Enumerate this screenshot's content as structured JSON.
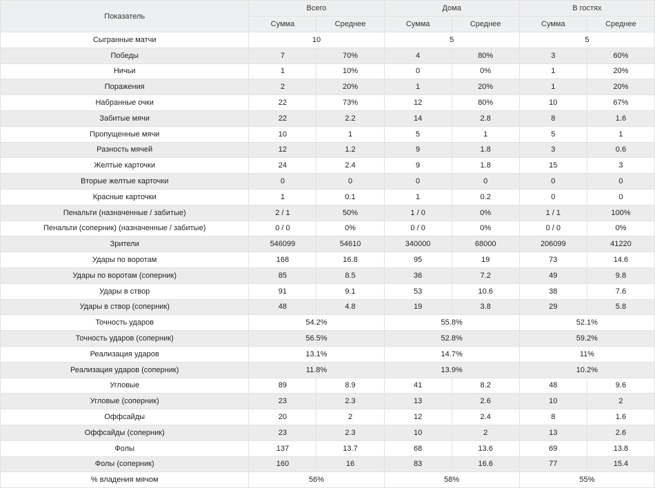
{
  "header": {
    "metric": "Показатель",
    "groups": [
      "Всего",
      "Дома",
      "В гостях"
    ],
    "sub": [
      "Сумма",
      "Среднее"
    ]
  },
  "rows": [
    {
      "label": "Сыгранные матчи",
      "merged": true,
      "values": [
        "10",
        "5",
        "5"
      ]
    },
    {
      "label": "Победы",
      "values": [
        "7",
        "70%",
        "4",
        "80%",
        "3",
        "60%"
      ]
    },
    {
      "label": "Ничьи",
      "values": [
        "1",
        "10%",
        "0",
        "0%",
        "1",
        "20%"
      ]
    },
    {
      "label": "Поражения",
      "values": [
        "2",
        "20%",
        "1",
        "20%",
        "1",
        "20%"
      ]
    },
    {
      "label": "Набранные очки",
      "values": [
        "22",
        "73%",
        "12",
        "80%",
        "10",
        "67%"
      ]
    },
    {
      "label": "Забитые мячи",
      "values": [
        "22",
        "2.2",
        "14",
        "2.8",
        "8",
        "1.6"
      ]
    },
    {
      "label": "Пропущенные мячи",
      "values": [
        "10",
        "1",
        "5",
        "1",
        "5",
        "1"
      ]
    },
    {
      "label": "Разность мячей",
      "values": [
        "12",
        "1.2",
        "9",
        "1.8",
        "3",
        "0.6"
      ]
    },
    {
      "label": "Желтые карточки",
      "values": [
        "24",
        "2.4",
        "9",
        "1.8",
        "15",
        "3"
      ]
    },
    {
      "label": "Вторые желтые карточки",
      "values": [
        "0",
        "0",
        "0",
        "0",
        "0",
        "0"
      ]
    },
    {
      "label": "Красные карточки",
      "values": [
        "1",
        "0.1",
        "1",
        "0.2",
        "0",
        "0"
      ]
    },
    {
      "label": "Пенальти (назначенные / забитые)",
      "values": [
        "2 / 1",
        "50%",
        "1 / 0",
        "0%",
        "1 / 1",
        "100%"
      ]
    },
    {
      "label": "Пенальти (соперник) (назначенные / забитые)",
      "values": [
        "0 / 0",
        "0%",
        "0 / 0",
        "0%",
        "0 / 0",
        "0%"
      ]
    },
    {
      "label": "Зрители",
      "values": [
        "546099",
        "54610",
        "340000",
        "68000",
        "206099",
        "41220"
      ]
    },
    {
      "label": "Удары по воротам",
      "values": [
        "168",
        "16.8",
        "95",
        "19",
        "73",
        "14.6"
      ]
    },
    {
      "label": "Удары по воротам (соперник)",
      "values": [
        "85",
        "8.5",
        "36",
        "7.2",
        "49",
        "9.8"
      ]
    },
    {
      "label": "Удары в створ",
      "values": [
        "91",
        "9.1",
        "53",
        "10.6",
        "38",
        "7.6"
      ]
    },
    {
      "label": "Удары в створ (соперник)",
      "values": [
        "48",
        "4.8",
        "19",
        "3.8",
        "29",
        "5.8"
      ]
    },
    {
      "label": "Точность ударов",
      "merged": true,
      "values": [
        "54.2%",
        "55.8%",
        "52.1%"
      ]
    },
    {
      "label": "Точность ударов (соперник)",
      "merged": true,
      "values": [
        "56.5%",
        "52.8%",
        "59.2%"
      ]
    },
    {
      "label": "Реализация ударов",
      "merged": true,
      "values": [
        "13.1%",
        "14.7%",
        "11%"
      ]
    },
    {
      "label": "Реализация ударов (соперник)",
      "merged": true,
      "values": [
        "11.8%",
        "13.9%",
        "10.2%"
      ]
    },
    {
      "label": "Угловые",
      "values": [
        "89",
        "8.9",
        "41",
        "8.2",
        "48",
        "9.6"
      ]
    },
    {
      "label": "Угловые (соперник)",
      "values": [
        "23",
        "2.3",
        "13",
        "2.6",
        "10",
        "2"
      ]
    },
    {
      "label": "Оффсайды",
      "values": [
        "20",
        "2",
        "12",
        "2.4",
        "8",
        "1.6"
      ]
    },
    {
      "label": "Оффсайды (соперник)",
      "values": [
        "23",
        "2.3",
        "10",
        "2",
        "13",
        "2.6"
      ]
    },
    {
      "label": "Фолы",
      "values": [
        "137",
        "13.7",
        "68",
        "13.6",
        "69",
        "13.8"
      ]
    },
    {
      "label": "Фолы (соперник)",
      "values": [
        "160",
        "16",
        "83",
        "16.6",
        "77",
        "15.4"
      ]
    },
    {
      "label": "% владения мячом",
      "merged": true,
      "values": [
        "56%",
        "58%",
        "55%"
      ]
    }
  ]
}
